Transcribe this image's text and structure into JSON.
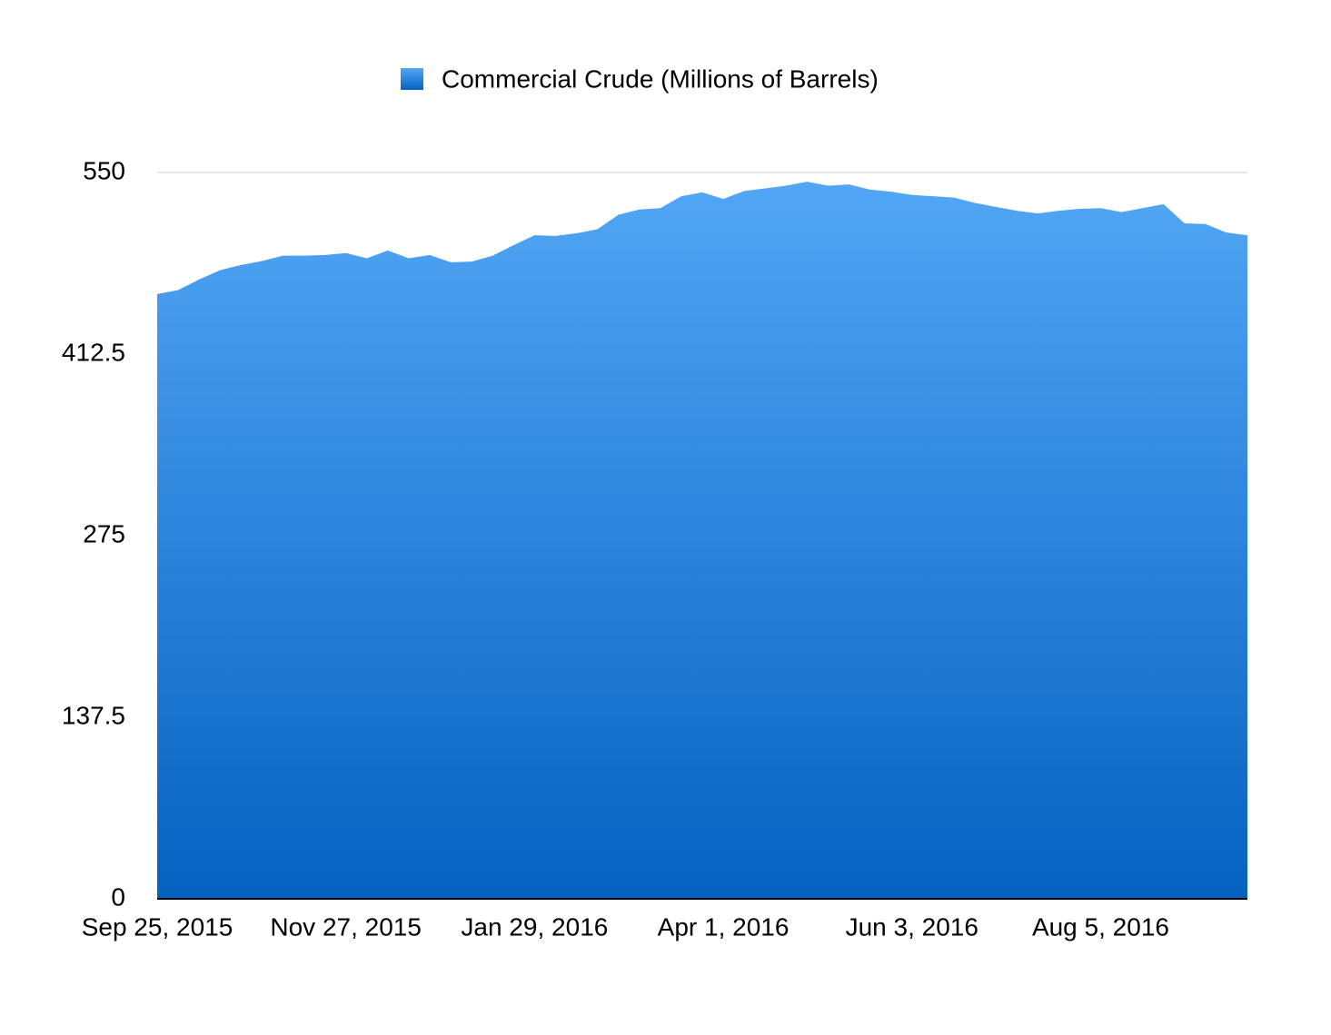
{
  "chart_data": {
    "type": "area",
    "series": [
      {
        "name": "Commercial Crude (Millions of Barrels)",
        "colors": [
          "#52a6f5",
          "#0562c1"
        ],
        "values": [
          458,
          461,
          469,
          476,
          480,
          483,
          487,
          487,
          487.5,
          489,
          485,
          491,
          485,
          487.5,
          482,
          482.5,
          487,
          495,
          502.5,
          502,
          504,
          507,
          518,
          522,
          523,
          532,
          535,
          530,
          536,
          538,
          540,
          543,
          540,
          541,
          537,
          535.5,
          533,
          532,
          531,
          527,
          524,
          521,
          519,
          521,
          522.5,
          523,
          520,
          523,
          526,
          511.5,
          511,
          504.5,
          502.5
        ]
      }
    ],
    "categories": [
      "Sep 25, 2015",
      null,
      null,
      null,
      null,
      null,
      null,
      null,
      null,
      "Nov 27, 2015",
      null,
      null,
      null,
      null,
      null,
      null,
      null,
      null,
      "Jan 29, 2016",
      null,
      null,
      null,
      null,
      null,
      null,
      null,
      null,
      "Apr 1, 2016",
      null,
      null,
      null,
      null,
      null,
      null,
      null,
      null,
      "Jun 3, 2016",
      null,
      null,
      null,
      null,
      null,
      null,
      null,
      null,
      "Aug 5, 2016",
      null,
      null,
      null,
      null,
      null,
      null,
      null
    ],
    "ylim": [
      0,
      550
    ],
    "yticks": [
      0,
      137.5,
      275,
      412.5,
      550
    ],
    "grid": true,
    "legend": "top"
  }
}
